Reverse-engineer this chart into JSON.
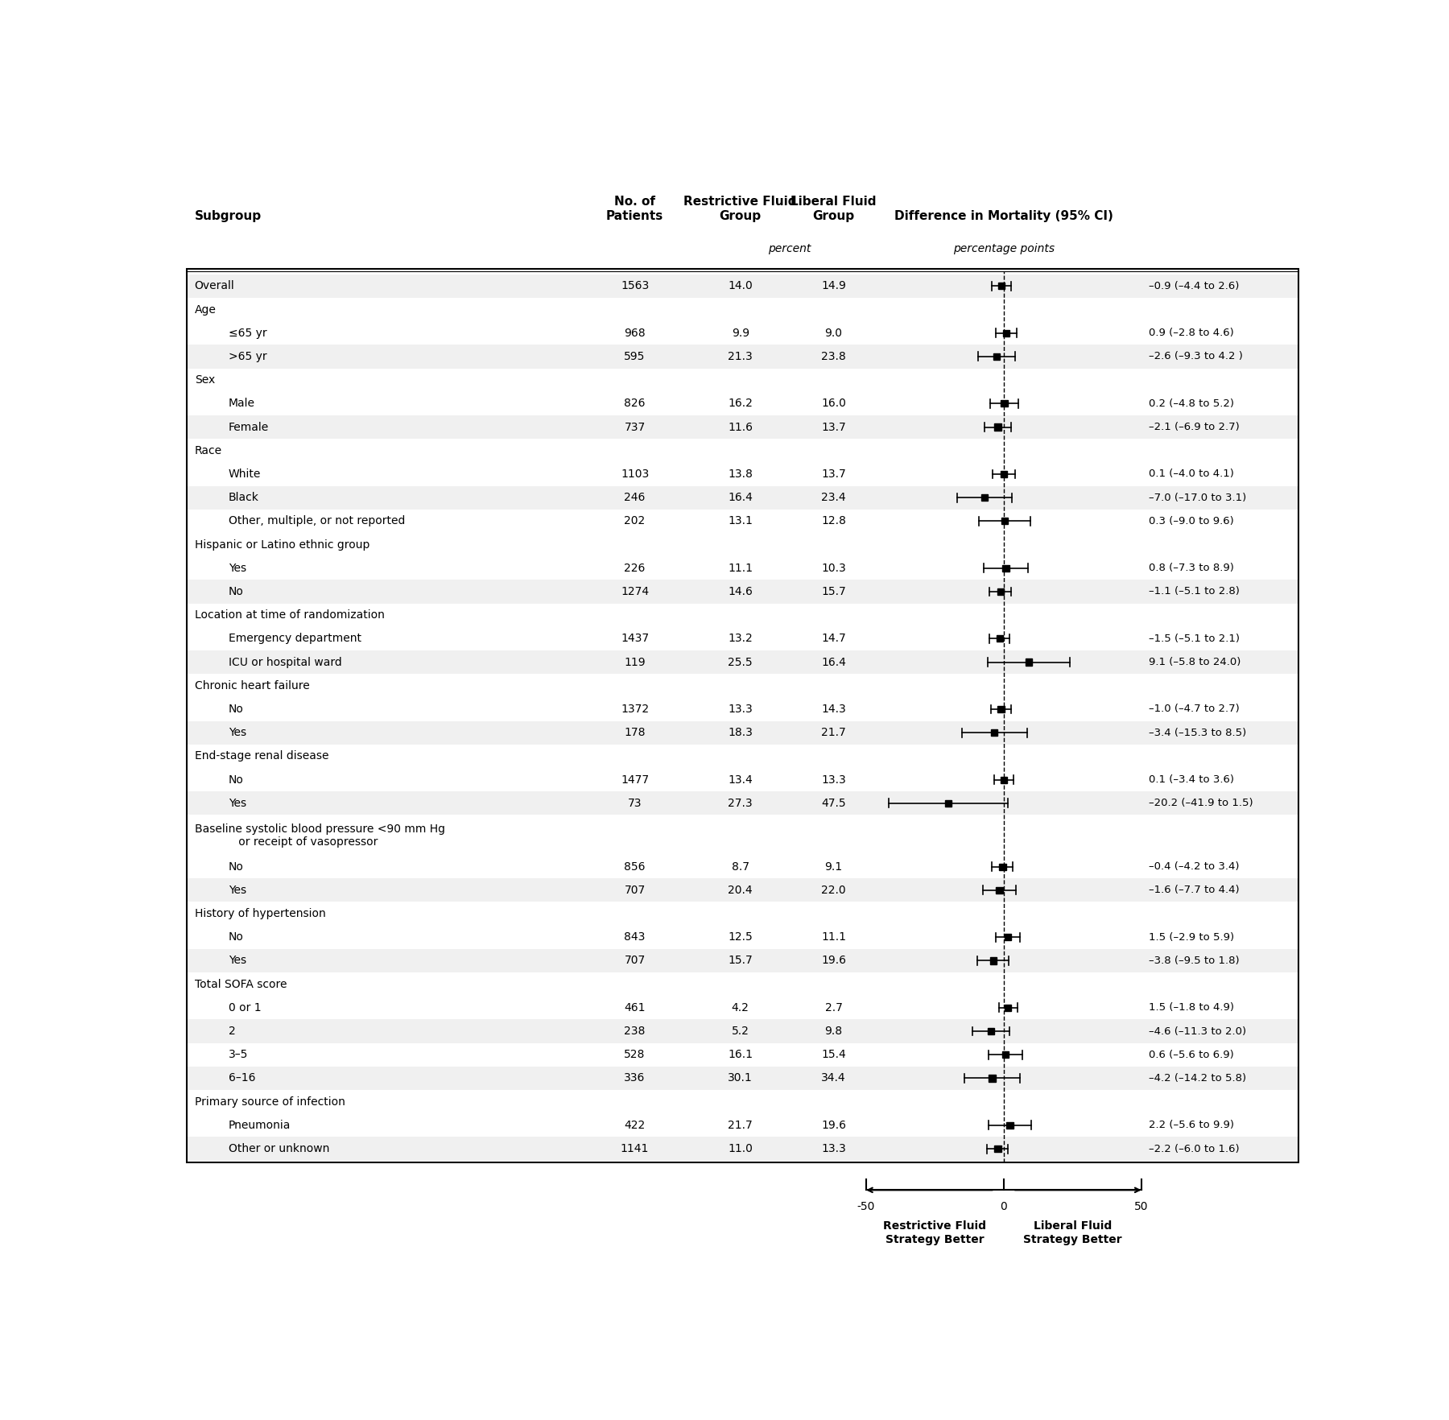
{
  "rows": [
    {
      "label": "Overall",
      "indent": 0,
      "n": "1563",
      "restrictive": "14.0",
      "liberal": "14.9",
      "est": -0.9,
      "lo": -4.4,
      "hi": 2.6,
      "ci_text": "–0.9 (–4.4 to 2.6)",
      "is_header": false,
      "shaded": true
    },
    {
      "label": "Age",
      "indent": 0,
      "n": "",
      "restrictive": "",
      "liberal": "",
      "est": null,
      "lo": null,
      "hi": null,
      "ci_text": "",
      "is_header": true,
      "shaded": false
    },
    {
      "label": "≤65 yr",
      "indent": 1,
      "n": "968",
      "restrictive": "9.9",
      "liberal": "9.0",
      "est": 0.9,
      "lo": -2.8,
      "hi": 4.6,
      "ci_text": "0.9 (–2.8 to 4.6)",
      "is_header": false,
      "shaded": false
    },
    {
      "label": ">65 yr",
      "indent": 1,
      "n": "595",
      "restrictive": "21.3",
      "liberal": "23.8",
      "est": -2.6,
      "lo": -9.3,
      "hi": 4.2,
      "ci_text": "–2.6 (–9.3 to 4.2 )",
      "is_header": false,
      "shaded": true
    },
    {
      "label": "Sex",
      "indent": 0,
      "n": "",
      "restrictive": "",
      "liberal": "",
      "est": null,
      "lo": null,
      "hi": null,
      "ci_text": "",
      "is_header": true,
      "shaded": false
    },
    {
      "label": "Male",
      "indent": 1,
      "n": "826",
      "restrictive": "16.2",
      "liberal": "16.0",
      "est": 0.2,
      "lo": -4.8,
      "hi": 5.2,
      "ci_text": "0.2 (–4.8 to 5.2)",
      "is_header": false,
      "shaded": false
    },
    {
      "label": "Female",
      "indent": 1,
      "n": "737",
      "restrictive": "11.6",
      "liberal": "13.7",
      "est": -2.1,
      "lo": -6.9,
      "hi": 2.7,
      "ci_text": "–2.1 (–6.9 to 2.7)",
      "is_header": false,
      "shaded": true
    },
    {
      "label": "Race",
      "indent": 0,
      "n": "",
      "restrictive": "",
      "liberal": "",
      "est": null,
      "lo": null,
      "hi": null,
      "ci_text": "",
      "is_header": true,
      "shaded": false
    },
    {
      "label": "White",
      "indent": 1,
      "n": "1103",
      "restrictive": "13.8",
      "liberal": "13.7",
      "est": 0.1,
      "lo": -4.0,
      "hi": 4.1,
      "ci_text": "0.1 (–4.0 to 4.1)",
      "is_header": false,
      "shaded": false
    },
    {
      "label": "Black",
      "indent": 1,
      "n": "246",
      "restrictive": "16.4",
      "liberal": "23.4",
      "est": -7.0,
      "lo": -17.0,
      "hi": 3.1,
      "ci_text": "–7.0 (–17.0 to 3.1)",
      "is_header": false,
      "shaded": true
    },
    {
      "label": "Other, multiple, or not reported",
      "indent": 1,
      "n": "202",
      "restrictive": "13.1",
      "liberal": "12.8",
      "est": 0.3,
      "lo": -9.0,
      "hi": 9.6,
      "ci_text": "0.3 (–9.0 to 9.6)",
      "is_header": false,
      "shaded": false
    },
    {
      "label": "Hispanic or Latino ethnic group",
      "indent": 0,
      "n": "",
      "restrictive": "",
      "liberal": "",
      "est": null,
      "lo": null,
      "hi": null,
      "ci_text": "",
      "is_header": true,
      "shaded": false
    },
    {
      "label": "Yes",
      "indent": 1,
      "n": "226",
      "restrictive": "11.1",
      "liberal": "10.3",
      "est": 0.8,
      "lo": -7.3,
      "hi": 8.9,
      "ci_text": "0.8 (–7.3 to 8.9)",
      "is_header": false,
      "shaded": false
    },
    {
      "label": "No",
      "indent": 1,
      "n": "1274",
      "restrictive": "14.6",
      "liberal": "15.7",
      "est": -1.1,
      "lo": -5.1,
      "hi": 2.8,
      "ci_text": "–1.1 (–5.1 to 2.8)",
      "is_header": false,
      "shaded": true
    },
    {
      "label": "Location at time of randomization",
      "indent": 0,
      "n": "",
      "restrictive": "",
      "liberal": "",
      "est": null,
      "lo": null,
      "hi": null,
      "ci_text": "",
      "is_header": true,
      "shaded": false
    },
    {
      "label": "Emergency department",
      "indent": 1,
      "n": "1437",
      "restrictive": "13.2",
      "liberal": "14.7",
      "est": -1.5,
      "lo": -5.1,
      "hi": 2.1,
      "ci_text": "–1.5 (–5.1 to 2.1)",
      "is_header": false,
      "shaded": false
    },
    {
      "label": "ICU or hospital ward",
      "indent": 1,
      "n": "119",
      "restrictive": "25.5",
      "liberal": "16.4",
      "est": 9.1,
      "lo": -5.8,
      "hi": 24.0,
      "ci_text": "9.1 (–5.8 to 24.0)",
      "is_header": false,
      "shaded": true
    },
    {
      "label": "Chronic heart failure",
      "indent": 0,
      "n": "",
      "restrictive": "",
      "liberal": "",
      "est": null,
      "lo": null,
      "hi": null,
      "ci_text": "",
      "is_header": true,
      "shaded": false
    },
    {
      "label": "No",
      "indent": 1,
      "n": "1372",
      "restrictive": "13.3",
      "liberal": "14.3",
      "est": -1.0,
      "lo": -4.7,
      "hi": 2.7,
      "ci_text": "–1.0 (–4.7 to 2.7)",
      "is_header": false,
      "shaded": false
    },
    {
      "label": "Yes",
      "indent": 1,
      "n": "178",
      "restrictive": "18.3",
      "liberal": "21.7",
      "est": -3.4,
      "lo": -15.3,
      "hi": 8.5,
      "ci_text": "–3.4 (–15.3 to 8.5)",
      "is_header": false,
      "shaded": true
    },
    {
      "label": "End-stage renal disease",
      "indent": 0,
      "n": "",
      "restrictive": "",
      "liberal": "",
      "est": null,
      "lo": null,
      "hi": null,
      "ci_text": "",
      "is_header": true,
      "shaded": false
    },
    {
      "label": "No",
      "indent": 1,
      "n": "1477",
      "restrictive": "13.4",
      "liberal": "13.3",
      "est": 0.1,
      "lo": -3.4,
      "hi": 3.6,
      "ci_text": "0.1 (–3.4 to 3.6)",
      "is_header": false,
      "shaded": false
    },
    {
      "label": "Yes",
      "indent": 1,
      "n": "73",
      "restrictive": "27.3",
      "liberal": "47.5",
      "est": -20.2,
      "lo": -41.9,
      "hi": 1.5,
      "ci_text": "–20.2 (–41.9 to 1.5)",
      "is_header": false,
      "shaded": true
    },
    {
      "label": "Baseline systolic blood pressure <90 mm Hg\n      or receipt of vasopressor",
      "indent": 0,
      "n": "",
      "restrictive": "",
      "liberal": "",
      "est": null,
      "lo": null,
      "hi": null,
      "ci_text": "",
      "is_header": true,
      "shaded": false,
      "two_line": true
    },
    {
      "label": "No",
      "indent": 1,
      "n": "856",
      "restrictive": "8.7",
      "liberal": "9.1",
      "est": -0.4,
      "lo": -4.2,
      "hi": 3.4,
      "ci_text": "–0.4 (–4.2 to 3.4)",
      "is_header": false,
      "shaded": false
    },
    {
      "label": "Yes",
      "indent": 1,
      "n": "707",
      "restrictive": "20.4",
      "liberal": "22.0",
      "est": -1.6,
      "lo": -7.7,
      "hi": 4.4,
      "ci_text": "–1.6 (–7.7 to 4.4)",
      "is_header": false,
      "shaded": true
    },
    {
      "label": "History of hypertension",
      "indent": 0,
      "n": "",
      "restrictive": "",
      "liberal": "",
      "est": null,
      "lo": null,
      "hi": null,
      "ci_text": "",
      "is_header": true,
      "shaded": false
    },
    {
      "label": "No",
      "indent": 1,
      "n": "843",
      "restrictive": "12.5",
      "liberal": "11.1",
      "est": 1.5,
      "lo": -2.9,
      "hi": 5.9,
      "ci_text": "1.5 (–2.9 to 5.9)",
      "is_header": false,
      "shaded": false
    },
    {
      "label": "Yes",
      "indent": 1,
      "n": "707",
      "restrictive": "15.7",
      "liberal": "19.6",
      "est": -3.8,
      "lo": -9.5,
      "hi": 1.8,
      "ci_text": "–3.8 (–9.5 to 1.8)",
      "is_header": false,
      "shaded": true
    },
    {
      "label": "Total SOFA score",
      "indent": 0,
      "n": "",
      "restrictive": "",
      "liberal": "",
      "est": null,
      "lo": null,
      "hi": null,
      "ci_text": "",
      "is_header": true,
      "shaded": false
    },
    {
      "label": "0 or 1",
      "indent": 1,
      "n": "461",
      "restrictive": "4.2",
      "liberal": "2.7",
      "est": 1.5,
      "lo": -1.8,
      "hi": 4.9,
      "ci_text": "1.5 (–1.8 to 4.9)",
      "is_header": false,
      "shaded": false
    },
    {
      "label": "2",
      "indent": 1,
      "n": "238",
      "restrictive": "5.2",
      "liberal": "9.8",
      "est": -4.6,
      "lo": -11.3,
      "hi": 2.0,
      "ci_text": "–4.6 (–11.3 to 2.0)",
      "is_header": false,
      "shaded": true
    },
    {
      "label": "3–5",
      "indent": 1,
      "n": "528",
      "restrictive": "16.1",
      "liberal": "15.4",
      "est": 0.6,
      "lo": -5.6,
      "hi": 6.9,
      "ci_text": "0.6 (–5.6 to 6.9)",
      "is_header": false,
      "shaded": false
    },
    {
      "label": "6–16",
      "indent": 1,
      "n": "336",
      "restrictive": "30.1",
      "liberal": "34.4",
      "est": -4.2,
      "lo": -14.2,
      "hi": 5.8,
      "ci_text": "–4.2 (–14.2 to 5.8)",
      "is_header": false,
      "shaded": true
    },
    {
      "label": "Primary source of infection",
      "indent": 0,
      "n": "",
      "restrictive": "",
      "liberal": "",
      "est": null,
      "lo": null,
      "hi": null,
      "ci_text": "",
      "is_header": true,
      "shaded": false
    },
    {
      "label": "Pneumonia",
      "indent": 1,
      "n": "422",
      "restrictive": "21.7",
      "liberal": "19.6",
      "est": 2.2,
      "lo": -5.6,
      "hi": 9.9,
      "ci_text": "2.2 (–5.6 to 9.9)",
      "is_header": false,
      "shaded": false
    },
    {
      "label": "Other or unknown",
      "indent": 1,
      "n": "1141",
      "restrictive": "11.0",
      "liberal": "13.3",
      "est": -2.2,
      "lo": -6.0,
      "hi": 1.6,
      "ci_text": "–2.2 (–6.0 to 1.6)",
      "is_header": false,
      "shaded": true
    }
  ],
  "col_headers": {
    "subgroup": "Subgroup",
    "n": "No. of\nPatients",
    "restrictive": "Restrictive Fluid\nGroup",
    "liberal": "Liberal Fluid\nGroup",
    "percent_label": "percent",
    "diff": "Difference in Mortality (95% CI)",
    "pct_pts": "percentage points"
  },
  "axis_min": -50,
  "axis_max": 50,
  "axis_ticks": [
    -50,
    0,
    50
  ],
  "bottom_left": "Restrictive Fluid\nStrategy Better",
  "bottom_right": "Liberal Fluid\nStrategy Better",
  "bg_color": "#ffffff",
  "shaded_color": "#f0f0f0",
  "border_color": "#000000"
}
